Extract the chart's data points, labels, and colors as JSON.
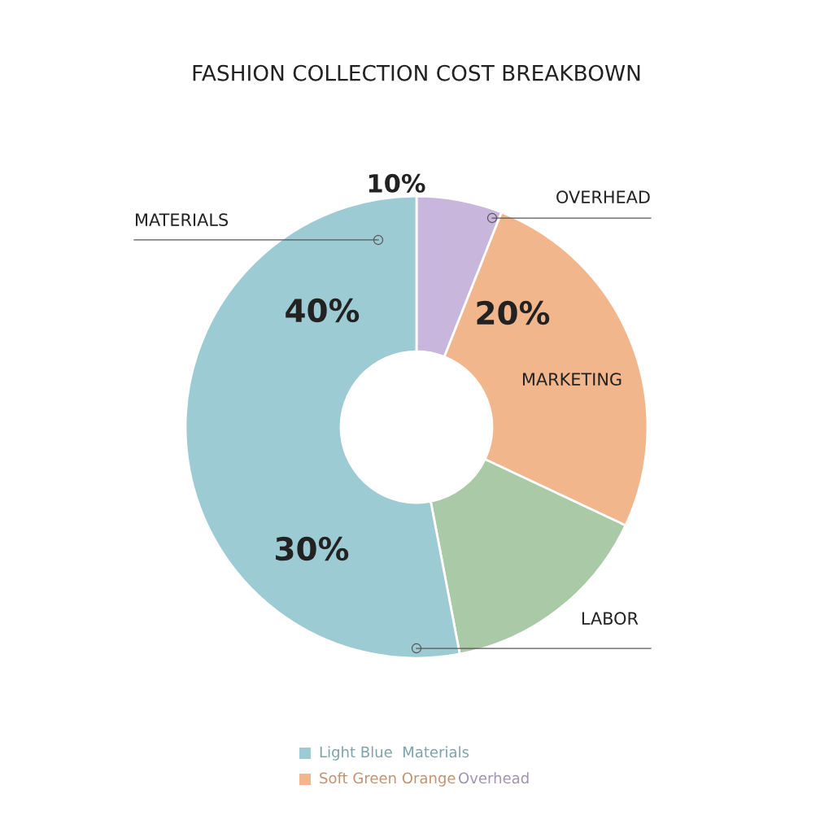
{
  "chart_data": {
    "type": "donut",
    "title": "FASHION COLLECTION COST BREAKBOWN",
    "categories": [
      "OVERHEAD",
      "MARKETING",
      "LABOR",
      "MATERIALS"
    ],
    "values": [
      6,
      26,
      15,
      53
    ],
    "colors": [
      "#c8b6dc",
      "#f1b68c",
      "#aac9a6",
      "#9dcbd3"
    ],
    "annotations": [
      "10%",
      "40%",
      "20%",
      "30%",
      "Light Blue  Materials",
      "Soft Green Orange",
      "Overhead"
    ]
  }
}
